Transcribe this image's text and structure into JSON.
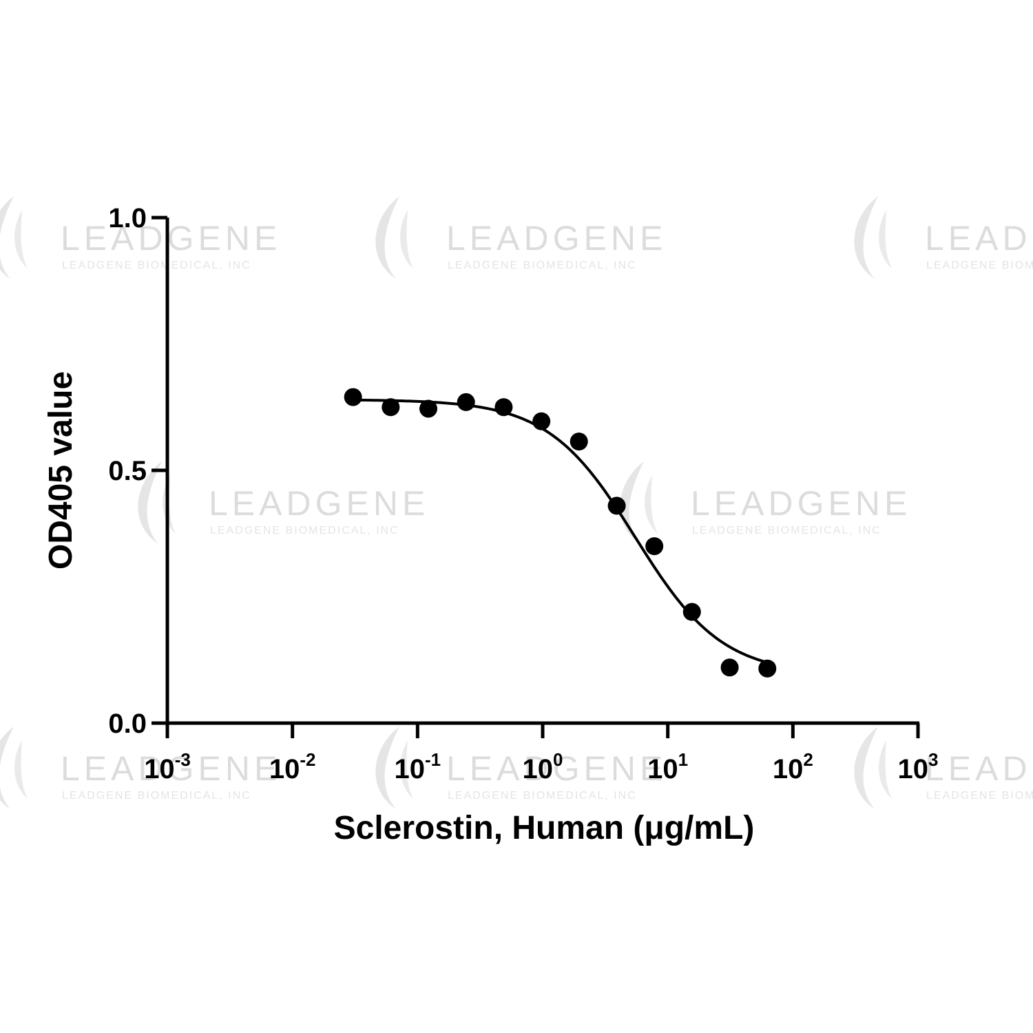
{
  "watermark": {
    "brand": "LEADGENE",
    "company": "LEADGENE BIOMEDICAL, INC"
  },
  "chart_data": {
    "type": "scatter",
    "title": "",
    "xlabel": "Sclerostin, Human (μg/mL)",
    "ylabel": "OD405 value",
    "x_scale": "log",
    "xlim": [
      0.001,
      1000
    ],
    "ylim": [
      0,
      1.0
    ],
    "x_ticks": [
      0.001,
      0.01,
      0.1,
      1,
      10,
      100,
      1000
    ],
    "x_tick_labels": [
      {
        "base": "10",
        "exp": "-3"
      },
      {
        "base": "10",
        "exp": "-2"
      },
      {
        "base": "10",
        "exp": "-1"
      },
      {
        "base": "10",
        "exp": "0"
      },
      {
        "base": "10",
        "exp": "1"
      },
      {
        "base": "10",
        "exp": "2"
      },
      {
        "base": "10",
        "exp": "3"
      }
    ],
    "y_ticks": [
      0.0,
      0.5,
      1.0
    ],
    "y_tick_labels": [
      "0.0",
      "0.5",
      "1.0"
    ],
    "grid": false,
    "legend": "none",
    "series": [
      {
        "x": [
          0.0305,
          0.061,
          0.122,
          0.244,
          0.488,
          0.977,
          1.95,
          3.91,
          7.81,
          15.6,
          31.25,
          62.5
        ],
        "y": [
          0.645,
          0.625,
          0.622,
          0.635,
          0.625,
          0.597,
          0.557,
          0.43,
          0.35,
          0.22,
          0.11,
          0.108
        ],
        "fit": {
          "model": "4PL",
          "top": 0.64,
          "bottom": 0.095,
          "ec50": 5.5,
          "hill": 1.25
        },
        "color": "#000000"
      }
    ]
  }
}
